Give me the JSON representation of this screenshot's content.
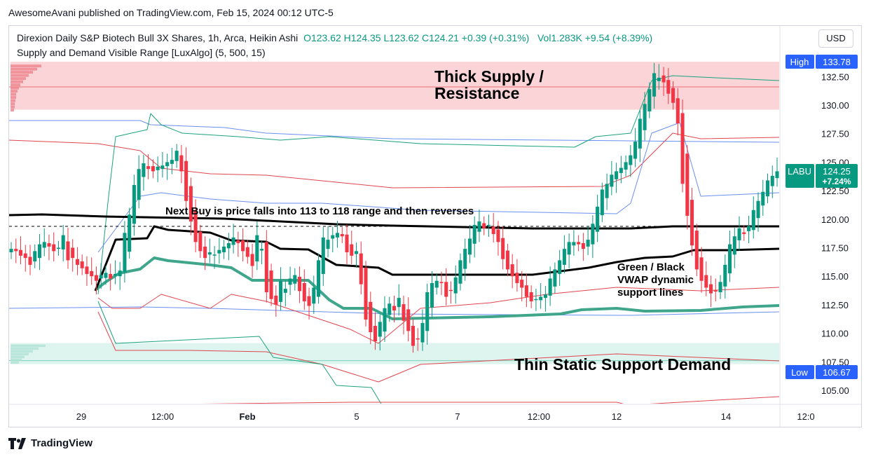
{
  "header": {
    "publisher": "AwesomeAvani published on TradingView.com, Feb 15, 2024 00:12 UTC-5",
    "legend_title": "Direxion Daily S&P Biotech Bull 3X Shares, 1h, Arca, Heikin Ashi",
    "ohlc": "O123.62  H124.35  L123.62  C124.21  +0.39 (+0.31%)",
    "volume": "Vol1.283K  +9.54 (+8.39%)",
    "indicator": "Supply and Demand Visible Range [LuxAlgo] (5, 500, 15)",
    "currency": "USD"
  },
  "footer": {
    "brand": "TradingView",
    "logo_icon": "tradingview-logo-icon"
  },
  "colors": {
    "up": "#089981",
    "down": "#f23645",
    "supply_zone": "#f7b8bd",
    "demand_zone": "#c8ede3",
    "vwap_green": "#3fa68c",
    "vwap_black": "#000000",
    "blue_band": "#6a8ff0",
    "red_band": "#e0454f",
    "green_band": "#19a37c"
  },
  "chart_data": {
    "type": "candlestick",
    "symbol": "LABU",
    "y_axis": {
      "range": [
        104,
        135
      ],
      "ticks": [
        105.0,
        107.5,
        110.0,
        112.5,
        115.0,
        117.5,
        120.0,
        122.5,
        125.0,
        127.5,
        130.0,
        132.5
      ],
      "labels": [
        "105.00",
        "107.50",
        "110.00",
        "112.50",
        "115.00",
        "117.50",
        "120.00",
        "122.50",
        "125.00",
        "127.50",
        "130.00",
        "132.50"
      ]
    },
    "x_axis": {
      "labels": [
        "29",
        "12:00",
        "Feb",
        "5",
        "7",
        "12:00",
        "12",
        "14",
        "12:0"
      ]
    },
    "price_labels": [
      {
        "name": "High",
        "value": "133.78"
      },
      {
        "name": "LABU",
        "value": "124.25",
        "change": "+7.24%"
      },
      {
        "name": "Low",
        "value": "106.67"
      }
    ],
    "zones": [
      {
        "name": "supply",
        "top": 133.8,
        "bottom": 129.6,
        "mid": 131.6
      },
      {
        "name": "demand",
        "top": 108.4,
        "bottom": 107.4,
        "mid": 107.6
      }
    ],
    "closes": [
      117.4,
      117.2,
      116.8,
      116.6,
      116.0,
      117.2,
      117.8,
      118.0,
      117.6,
      117.2,
      117.5,
      118.6,
      116.4,
      116.6,
      116.0,
      115.7,
      115.2,
      115.0,
      114.6,
      115.1,
      115.3,
      114.8,
      115.2,
      115.5,
      118.8,
      120.4,
      123.0,
      124.4,
      124.9,
      124.4,
      124.2,
      124.6,
      124.7,
      125.0,
      125.2,
      126.0,
      124.2,
      121.6,
      119.8,
      118.0,
      117.2,
      116.6,
      117.1,
      116.9,
      117.3,
      117.6,
      117.9,
      118.4,
      117.9,
      117.2,
      116.7,
      115.9,
      118.6,
      117.4,
      113.6,
      113.0,
      112.5,
      114.6,
      113.9,
      114.8,
      115.1,
      113.7,
      112.8,
      112.4,
      114.0,
      116.4,
      118.4,
      118.2,
      118.6,
      118.8,
      118.5,
      117.1,
      116.8,
      117.2,
      114.3,
      111.2,
      110.1,
      109.3,
      111.0,
      112.2,
      112.6,
      112.0,
      113.1,
      111.1,
      110.2,
      108.9,
      109.5,
      110.9,
      113.6,
      114.4,
      114.6,
      114.4,
      113.2,
      113.8,
      114.9,
      116.4,
      117.4,
      118.3,
      119.5,
      119.8,
      119.2,
      119.5,
      118.7,
      118.0,
      116.5,
      115.6,
      115.0,
      114.4,
      114.0,
      113.2,
      112.8,
      113.0,
      113.2,
      113.4,
      114.8,
      115.6,
      116.4,
      117.4,
      118.0,
      118.0,
      117.8,
      117.4,
      118.2,
      119.6,
      121.1,
      122.6,
      123.1,
      123.9,
      124.2,
      124.5,
      125.0,
      125.6,
      126.8,
      128.8,
      130.1,
      131.4,
      132.8,
      132.4,
      132.0,
      131.0,
      130.2,
      128.4,
      123.1,
      120.3,
      117.7,
      115.6,
      114.6,
      114.0,
      113.5,
      113.7,
      114.5,
      116.0,
      117.8,
      118.5,
      119.2,
      118.7,
      119.4,
      120.8,
      121.6,
      122.4,
      123.4,
      123.8,
      124.2
    ],
    "annotations": [
      "Thick Supply /",
      "Resistance",
      "Next Buy is price falls into 113 to 118 range and then reverses",
      "Green / Black",
      "VWAP dynamic",
      "support lines",
      "Thin  Static Support Demand"
    ]
  }
}
